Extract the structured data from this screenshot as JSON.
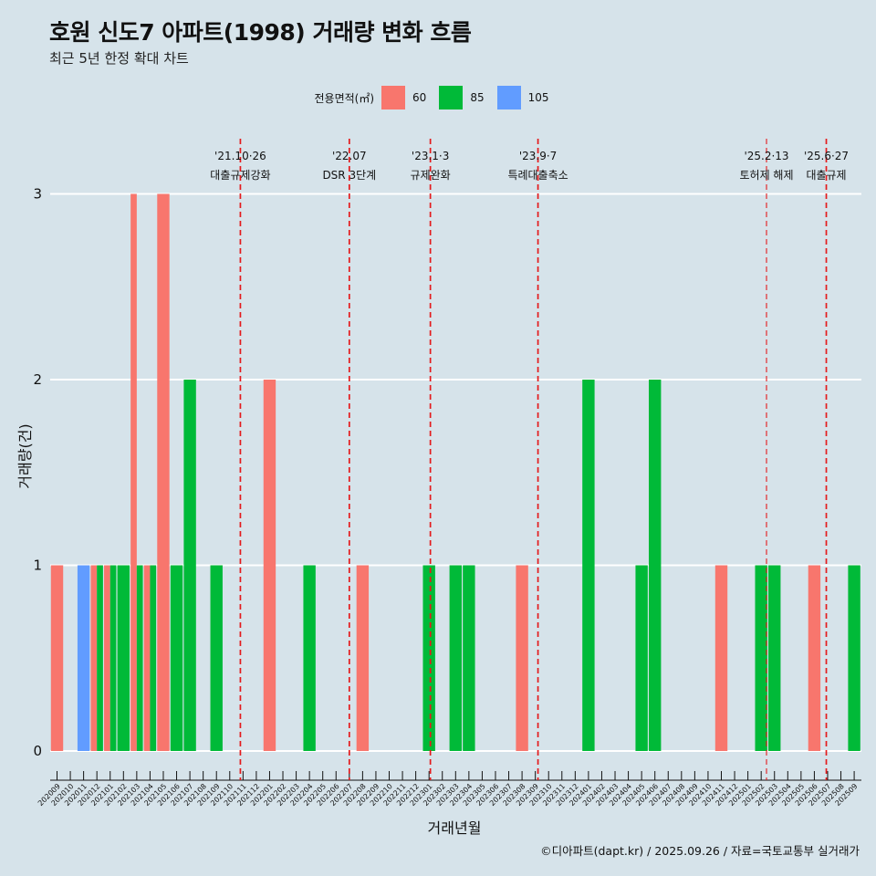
{
  "title": "호원 신도7 아파트(1998) 거래량 변화 흐름",
  "subtitle": "최근 5년 한정 확대 차트",
  "caption": "©디아파트(dapt.kr) / 2025.09.26 / 자료=국토교통부 실거래가",
  "legend": {
    "title": "전용면적(㎡)",
    "items": [
      {
        "label": "60",
        "color": "#f8766d"
      },
      {
        "label": "85",
        "color": "#00ba38"
      },
      {
        "label": "105",
        "color": "#619cff"
      }
    ]
  },
  "chart_data": {
    "type": "bar",
    "stacked": false,
    "xlabel": "거래년월",
    "ylabel": "거래량(건)",
    "ylim": [
      0,
      3
    ],
    "yticks": [
      0,
      1,
      2,
      3
    ],
    "grid": true,
    "legend_position": "top",
    "categories": [
      "202009",
      "202010",
      "202011",
      "202012",
      "202101",
      "202102",
      "202103",
      "202104",
      "202105",
      "202106",
      "202107",
      "202108",
      "202109",
      "202110",
      "202111",
      "202112",
      "202201",
      "202202",
      "202203",
      "202204",
      "202205",
      "202206",
      "202207",
      "202208",
      "202209",
      "202210",
      "202211",
      "202212",
      "202301",
      "202302",
      "202303",
      "202304",
      "202305",
      "202306",
      "202307",
      "202308",
      "202309",
      "202310",
      "202311",
      "202312",
      "202401",
      "202402",
      "202403",
      "202404",
      "202405",
      "202406",
      "202407",
      "202408",
      "202409",
      "202410",
      "202411",
      "202412",
      "202501",
      "202502",
      "202503",
      "202504",
      "202505",
      "202506",
      "202507",
      "202508",
      "202509"
    ],
    "bars": [
      {
        "month": "202009",
        "size": "60",
        "value": 1
      },
      {
        "month": "202011",
        "size": "105",
        "value": 1
      },
      {
        "month": "202012",
        "size": "60",
        "value": 1
      },
      {
        "month": "202012",
        "size": "85",
        "value": 1
      },
      {
        "month": "202101",
        "size": "60",
        "value": 1
      },
      {
        "month": "202101",
        "size": "85",
        "value": 1
      },
      {
        "month": "202102",
        "size": "85",
        "value": 1
      },
      {
        "month": "202103",
        "size": "60",
        "value": 3
      },
      {
        "month": "202103",
        "size": "85",
        "value": 1
      },
      {
        "month": "202104",
        "size": "60",
        "value": 1
      },
      {
        "month": "202104",
        "size": "85",
        "value": 1
      },
      {
        "month": "202105",
        "size": "60",
        "value": 3
      },
      {
        "month": "202106",
        "size": "85",
        "value": 1
      },
      {
        "month": "202107",
        "size": "85",
        "value": 2
      },
      {
        "month": "202109",
        "size": "85",
        "value": 1
      },
      {
        "month": "202201",
        "size": "60",
        "value": 2
      },
      {
        "month": "202204",
        "size": "85",
        "value": 1
      },
      {
        "month": "202208",
        "size": "60",
        "value": 1
      },
      {
        "month": "202301",
        "size": "85",
        "value": 1
      },
      {
        "month": "202303",
        "size": "85",
        "value": 1
      },
      {
        "month": "202304",
        "size": "85",
        "value": 1
      },
      {
        "month": "202308",
        "size": "60",
        "value": 1
      },
      {
        "month": "202401",
        "size": "85",
        "value": 2
      },
      {
        "month": "202405",
        "size": "85",
        "value": 1
      },
      {
        "month": "202406",
        "size": "85",
        "value": 2
      },
      {
        "month": "202411",
        "size": "60",
        "value": 1
      },
      {
        "month": "202502",
        "size": "85",
        "value": 1
      },
      {
        "month": "202503",
        "size": "85",
        "value": 1
      },
      {
        "month": "202506",
        "size": "60",
        "value": 1
      },
      {
        "month": "202509",
        "size": "85",
        "value": 1
      }
    ],
    "events": [
      {
        "month": 202110.8,
        "date": "'21.10·26",
        "label": "대출규제강화",
        "style": "bold"
      },
      {
        "month": 202207.0,
        "date": "'22.07",
        "label": "DSR 3단계",
        "style": "bold"
      },
      {
        "month": 202301.1,
        "date": "'23.1·3",
        "label": "규제완화",
        "style": "bold"
      },
      {
        "month": 202309.2,
        "date": "'23.9·7",
        "label": "특례대출축소",
        "style": "bold"
      },
      {
        "month": 202502.4,
        "date": "'25.2·13",
        "label": "토허제 해제",
        "style": "thin"
      },
      {
        "month": 202506.9,
        "date": "'25.6·27",
        "label": "대출규제",
        "style": "bold"
      }
    ]
  }
}
